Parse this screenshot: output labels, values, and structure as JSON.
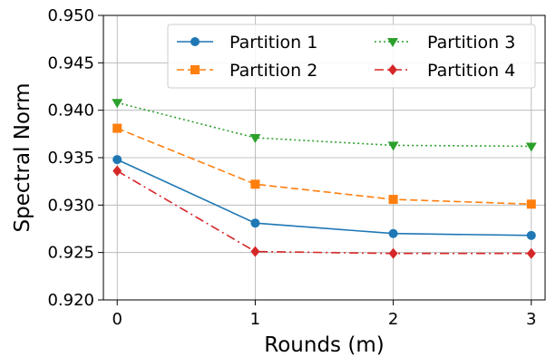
{
  "chart_data": {
    "type": "line",
    "title": "",
    "xlabel": "Rounds (m)",
    "ylabel": "Spectral Norm",
    "x": [
      0,
      1,
      2,
      3
    ],
    "x_tick_labels": [
      "0",
      "1",
      "2",
      "3"
    ],
    "xlim": [
      -0.1,
      3.1
    ],
    "ylim": [
      0.92,
      0.95
    ],
    "y_ticks": [
      0.92,
      0.925,
      0.93,
      0.935,
      0.94,
      0.945,
      0.95
    ],
    "y_tick_labels": [
      "0.920",
      "0.925",
      "0.930",
      "0.935",
      "0.940",
      "0.945",
      "0.950"
    ],
    "grid": true,
    "legend_position": "upper-right",
    "legend_columns": 2,
    "series": [
      {
        "name": "Partition 1",
        "values": [
          0.9348,
          0.9281,
          0.927,
          0.9268
        ],
        "color": "#1f77b4",
        "linestyle": "solid",
        "marker": "circle"
      },
      {
        "name": "Partition 2",
        "values": [
          0.9381,
          0.9322,
          0.9306,
          0.9301
        ],
        "color": "#ff7f0e",
        "linestyle": "dashed",
        "marker": "square"
      },
      {
        "name": "Partition 3",
        "values": [
          0.9408,
          0.9371,
          0.9363,
          0.9362
        ],
        "color": "#2ca02c",
        "linestyle": "dotted",
        "marker": "triangle-down"
      },
      {
        "name": "Partition 4",
        "values": [
          0.9336,
          0.9251,
          0.9249,
          0.9249
        ],
        "color": "#d62728",
        "linestyle": "dashdot",
        "marker": "diamond"
      }
    ]
  }
}
